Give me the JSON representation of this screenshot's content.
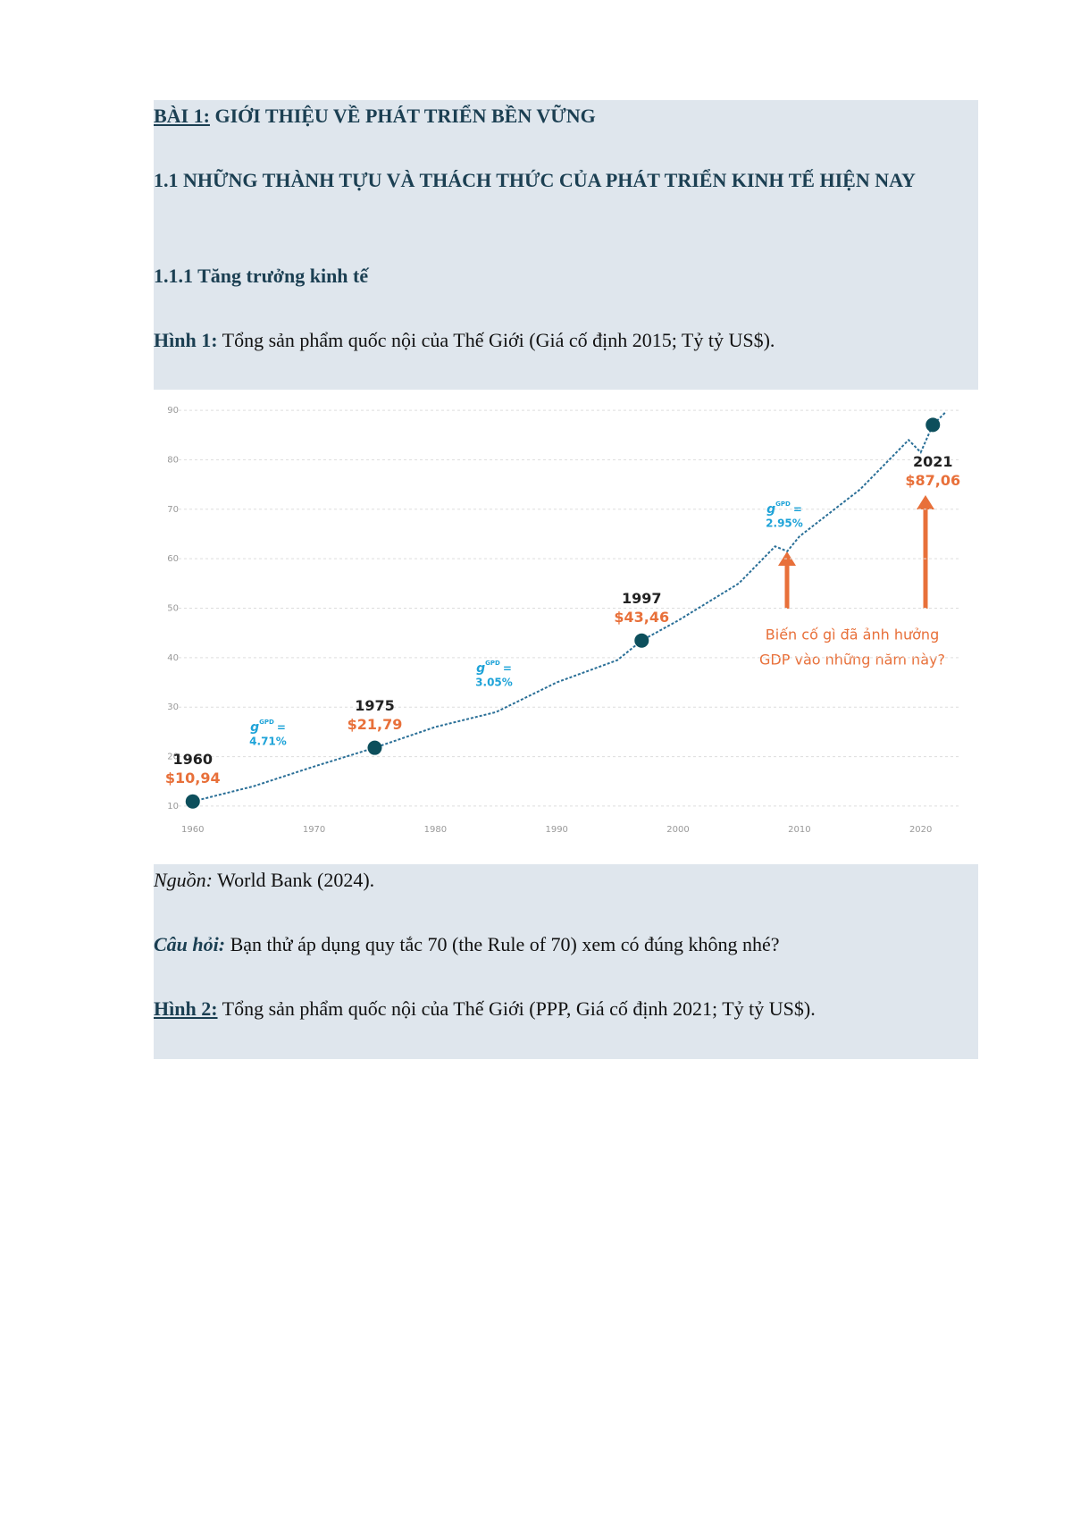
{
  "lesson": {
    "label": "BÀI 1:",
    "title": "GIỚI THIỆU VỀ PHÁT TRIỂN BỀN VỮNG"
  },
  "section": "1.1 NHỮNG THÀNH TỰU VÀ THÁCH THỨC CỦA PHÁT TRIỂN KINH TẾ HIỆN NAY",
  "subsection": "1.1.1 Tăng trưởng kinh tế",
  "figure1": {
    "label": "Hình 1:",
    "caption": "Tổng sản phẩm quốc nội của Thế Giới (Giá cố định 2015; Tỷ tỷ US$)."
  },
  "chart_data": {
    "type": "line",
    "x": [
      1960,
      1965,
      1970,
      1975,
      1980,
      1985,
      1990,
      1995,
      1997,
      2000,
      2005,
      2008,
      2009,
      2010,
      2015,
      2019,
      2020,
      2021,
      2022
    ],
    "values": [
      10.94,
      14,
      18,
      21.79,
      26,
      29,
      35,
      39.5,
      43.46,
      47.5,
      55,
      62.5,
      61.5,
      64.5,
      74,
      84,
      81.5,
      87.06,
      89.5
    ],
    "color": "#2a6f97",
    "xlim": [
      1957,
      2024
    ],
    "xticks": [
      1960,
      1970,
      1980,
      1990,
      2000,
      2010,
      2020
    ],
    "ylim": [
      8,
      92
    ],
    "yticks": [
      10,
      20,
      30,
      40,
      50,
      60,
      70,
      80,
      90
    ],
    "grid": true,
    "highlights": [
      {
        "x": 1960,
        "value": 10.94,
        "value_label": "$10,94"
      },
      {
        "x": 1975,
        "value": 21.79,
        "value_label": "$21,79"
      },
      {
        "x": 1997,
        "value": 43.46,
        "value_label": "$43,46"
      },
      {
        "x": 2021,
        "value": 87.06,
        "value_label": "$87,06"
      }
    ],
    "growth_annotations": [
      {
        "symbol": "g",
        "sup": "GPD",
        "eq": "=",
        "rate": "4.71%"
      },
      {
        "symbol": "g",
        "sup": "GPD",
        "eq": "=",
        "rate": "3.05%"
      },
      {
        "symbol": "g",
        "sup": "GPD",
        "eq": "=",
        "rate": "2.95%"
      }
    ],
    "callout": [
      "Biến cố gì đã ảnh hưởng",
      "GDP vào những năm này?"
    ]
  },
  "source": {
    "label": "Nguồn:",
    "text": "World Bank (2024)."
  },
  "question": {
    "label": "Câu hỏi:",
    "text": "Bạn thử áp dụng quy tắc 70 (the Rule of 70) xem có đúng không nhé?"
  },
  "figure2": {
    "label": "Hình 2:",
    "caption": "Tổng sản phẩm quốc nội của Thế Giới (PPP, Giá cố định 2021; Tỷ tỷ US$)."
  }
}
